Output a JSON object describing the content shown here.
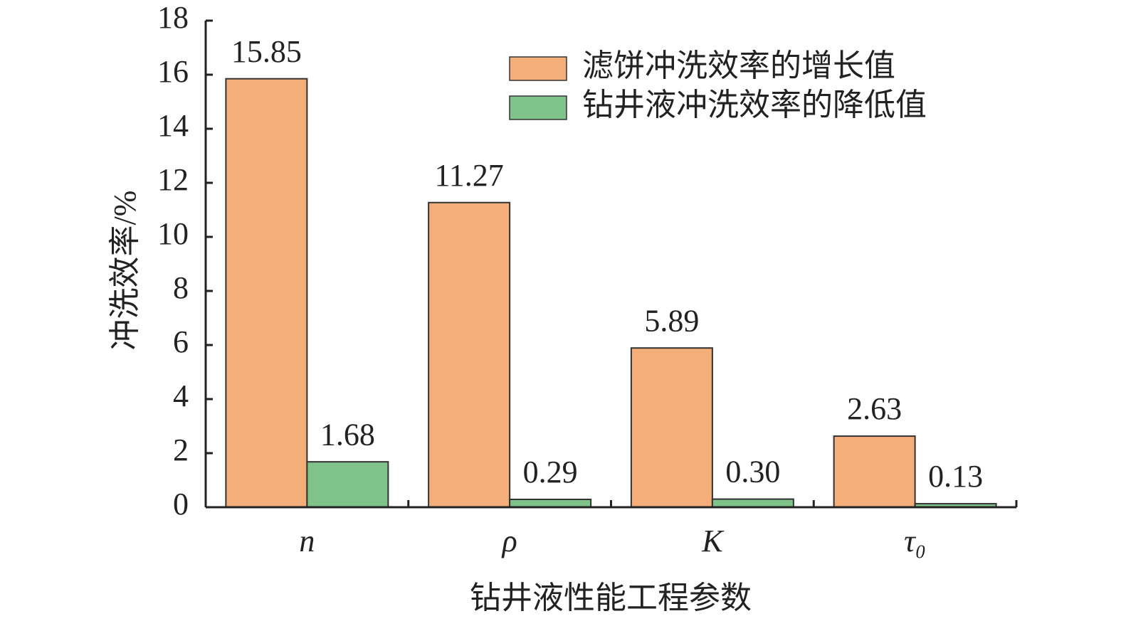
{
  "chart_data": {
    "type": "bar",
    "categories": [
      "n",
      "ρ",
      "K",
      "τ₀"
    ],
    "series": [
      {
        "name": "滤饼冲洗效率的增长值",
        "color": "#f4ae7a",
        "values": [
          15.85,
          11.27,
          5.89,
          2.63
        ],
        "value_labels": [
          "15.85",
          "11.27",
          "5.89",
          "2.63"
        ]
      },
      {
        "name": "钻井液冲洗效率的降低值",
        "color": "#7fc28a",
        "values": [
          1.68,
          0.29,
          0.3,
          0.13
        ],
        "value_labels": [
          "1.68",
          "0.29",
          "0.30",
          "0.13"
        ]
      }
    ],
    "ylim": [
      0,
      18
    ],
    "yticks": [
      0,
      2,
      4,
      6,
      8,
      10,
      12,
      14,
      16,
      18
    ],
    "ylabel": "冲洗效率/%",
    "xlabel": "钻井液性能工程参数",
    "legend": "upper right"
  }
}
